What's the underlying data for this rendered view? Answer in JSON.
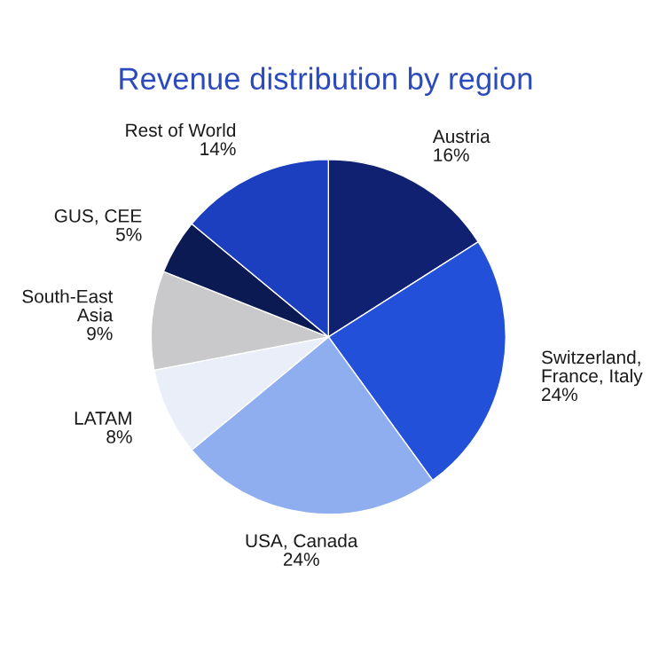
{
  "chart_data": {
    "type": "pie",
    "title": "Revenue distribution by region",
    "categories": [
      "Austria",
      "Switzerland,\nFrance, Italy",
      "USA, Canada",
      "LATAM",
      "South-East\nAsia",
      "GUS, CEE",
      "Rest of World"
    ],
    "values": [
      16,
      24,
      24,
      8,
      9,
      5,
      14
    ],
    "value_labels": [
      "16%",
      "24%",
      "24%",
      "8%",
      "9%",
      "5%",
      "14%"
    ],
    "colors": [
      "#0f2170",
      "#2350d8",
      "#8eaef0",
      "#e9eef8",
      "#c9c9cc",
      "#0b1a52",
      "#1b3fbf"
    ]
  }
}
